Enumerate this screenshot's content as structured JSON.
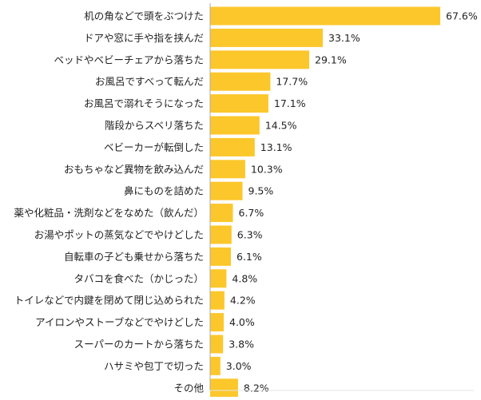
{
  "chart_data": {
    "type": "bar",
    "orientation": "horizontal",
    "title": "",
    "xlabel": "",
    "ylabel": "",
    "xlim": [
      0,
      68
    ],
    "grid": false,
    "legend": "none",
    "bar_color": "#FCC72B",
    "axis_color": "#AAAAAA",
    "label_color": "#222222",
    "value_suffix": "%",
    "categories": [
      "机の角などで頭をぶつけた",
      "ドアや窓に手や指を挟んだ",
      "ベッドやベビーチェアから落ちた",
      "お風呂ですべって転んだ",
      "お風呂で溺れそうになった",
      "階段からスベリ落ちた",
      "ベビーカーが転倒した",
      "おもちゃなど異物を飲み込んだ",
      "鼻にものを詰めた",
      "薬や化粧品・洗剤などをなめた（飲んだ）",
      "お湯やポットの蒸気などでやけどした",
      "自転車の子ども乗せから落ちた",
      "タバコを食べた（かじった）",
      "トイレなどで内鍵を閉めて閉じ込められた",
      "アイロンやストーブなどでやけどした",
      "スーパーのカートから落ちた",
      "ハサミや包丁で切った",
      "その他"
    ],
    "values": [
      67.6,
      33.1,
      29.1,
      17.7,
      17.1,
      14.5,
      13.1,
      10.3,
      9.5,
      6.7,
      6.3,
      6.1,
      4.8,
      4.2,
      4.0,
      3.8,
      3.0,
      8.2
    ]
  }
}
